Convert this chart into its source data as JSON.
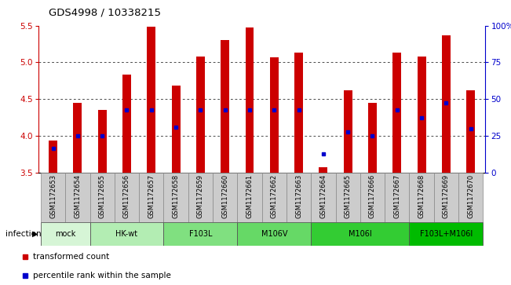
{
  "title": "GDS4998 / 10338215",
  "samples": [
    "GSM1172653",
    "GSM1172654",
    "GSM1172655",
    "GSM1172656",
    "GSM1172657",
    "GSM1172658",
    "GSM1172659",
    "GSM1172660",
    "GSM1172661",
    "GSM1172662",
    "GSM1172663",
    "GSM1172664",
    "GSM1172665",
    "GSM1172666",
    "GSM1172667",
    "GSM1172668",
    "GSM1172669",
    "GSM1172670"
  ],
  "bar_values": [
    3.93,
    4.45,
    4.35,
    4.83,
    5.49,
    4.68,
    5.08,
    5.3,
    5.47,
    5.07,
    5.13,
    3.57,
    4.62,
    4.45,
    5.13,
    5.08,
    5.37,
    4.62
  ],
  "percentile_values": [
    3.83,
    4.0,
    4.0,
    4.35,
    4.35,
    4.12,
    4.35,
    4.35,
    4.35,
    4.35,
    4.35,
    3.75,
    4.05,
    4.0,
    4.35,
    4.25,
    4.45,
    4.1
  ],
  "ylim_left": [
    3.5,
    5.5
  ],
  "ylim_right": [
    0,
    100
  ],
  "yticks_left": [
    3.5,
    4.0,
    4.5,
    5.0,
    5.5
  ],
  "yticks_right": [
    0,
    25,
    50,
    75,
    100
  ],
  "ytick_labels_right": [
    "0",
    "25",
    "50",
    "75",
    "100%"
  ],
  "groups": [
    {
      "label": "mock",
      "start": 0,
      "end": 2,
      "color": "#d6f5d6"
    },
    {
      "label": "HK-wt",
      "start": 2,
      "end": 5,
      "color": "#b3edb3"
    },
    {
      "label": "F103L",
      "start": 5,
      "end": 8,
      "color": "#80e080"
    },
    {
      "label": "M106V",
      "start": 8,
      "end": 11,
      "color": "#66d966"
    },
    {
      "label": "M106I",
      "start": 11,
      "end": 15,
      "color": "#33cc33"
    },
    {
      "label": "F103L+M106I",
      "start": 15,
      "end": 18,
      "color": "#00bb00"
    }
  ],
  "bar_color": "#cc0000",
  "percentile_color": "#0000cc",
  "bar_width": 0.35,
  "left_tick_color": "#cc0000",
  "right_tick_color": "#0000cc",
  "baseline": 3.5
}
